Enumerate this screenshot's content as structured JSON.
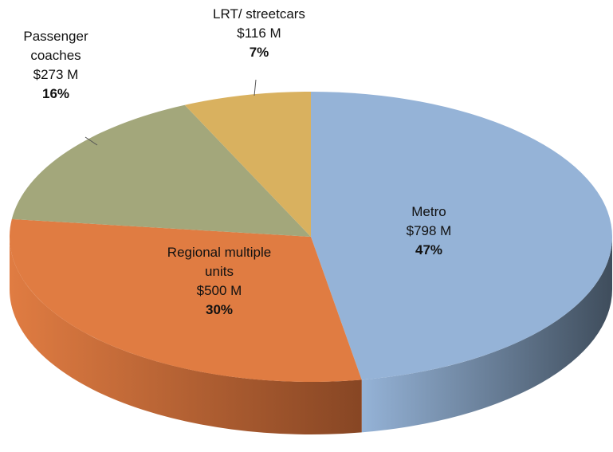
{
  "chart_data": {
    "type": "pie3d",
    "categories": [
      "Metro",
      "Regional multiple units",
      "Passenger coaches",
      "LRT/ streetcars"
    ],
    "values": [
      798,
      500,
      273,
      116
    ],
    "value_labels": [
      "$798 M",
      "$500 M",
      "$273 M",
      "$116 M"
    ],
    "percent_labels": [
      "47%",
      "30%",
      "16%",
      "7%"
    ],
    "colors": [
      "#95b3d7",
      "#e07c42",
      "#a3a77b",
      "#d9b15f"
    ],
    "side_colors": [
      "#3f4d5c",
      "#874624",
      "#6c6f4d",
      "#8d6e32"
    ]
  }
}
